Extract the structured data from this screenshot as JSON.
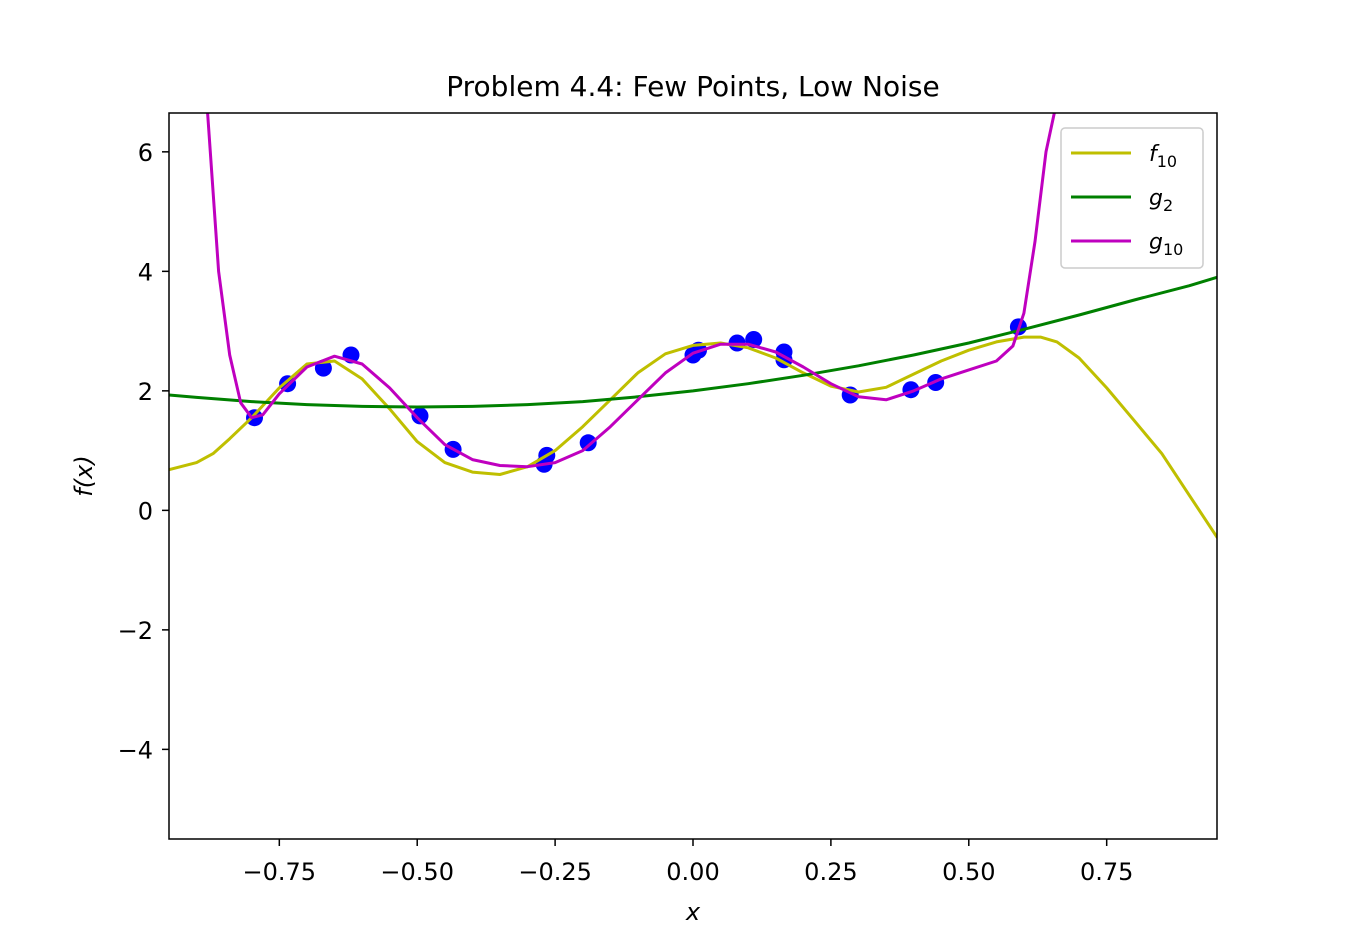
{
  "chart_data": {
    "type": "line",
    "title": "Problem 4.4: Few Points, Low Noise",
    "xlabel": "x",
    "ylabel": "f(x)",
    "xlim": [
      -0.95,
      0.95
    ],
    "ylim": [
      -5.5,
      6.65
    ],
    "x_ticks": [
      -0.75,
      -0.5,
      -0.25,
      0.0,
      0.25,
      0.5,
      0.75
    ],
    "x_tick_labels": [
      "−0.75",
      "−0.50",
      "−0.25",
      "0.00",
      "0.25",
      "0.50",
      "0.75"
    ],
    "y_ticks": [
      -4,
      -2,
      0,
      2,
      4,
      6
    ],
    "y_tick_labels": [
      "−4",
      "−2",
      "0",
      "2",
      "4",
      "6"
    ],
    "grid": false,
    "legend_position": "top-right",
    "series": [
      {
        "name": "f10",
        "legend_base": "f",
        "legend_sub": "10",
        "color": "#bfbf00",
        "x": [
          -0.95,
          -0.9,
          -0.87,
          -0.84,
          -0.8,
          -0.75,
          -0.7,
          -0.65,
          -0.6,
          -0.55,
          -0.5,
          -0.45,
          -0.4,
          -0.35,
          -0.3,
          -0.25,
          -0.2,
          -0.15,
          -0.1,
          -0.05,
          0.0,
          0.05,
          0.1,
          0.15,
          0.2,
          0.25,
          0.3,
          0.35,
          0.4,
          0.45,
          0.5,
          0.55,
          0.6,
          0.63,
          0.66,
          0.7,
          0.75,
          0.8,
          0.85,
          0.9,
          0.95
        ],
        "y": [
          0.68,
          0.8,
          0.95,
          1.2,
          1.55,
          2.05,
          2.45,
          2.5,
          2.2,
          1.7,
          1.15,
          0.8,
          0.64,
          0.6,
          0.73,
          1.0,
          1.4,
          1.85,
          2.3,
          2.62,
          2.76,
          2.8,
          2.72,
          2.55,
          2.3,
          2.08,
          1.98,
          2.06,
          2.28,
          2.5,
          2.68,
          2.82,
          2.9,
          2.9,
          2.82,
          2.55,
          2.05,
          1.5,
          0.95,
          0.25,
          -0.45
        ]
      },
      {
        "name": "g2",
        "legend_base": "g",
        "legend_sub": "2",
        "color": "#008000",
        "x": [
          -0.95,
          -0.9,
          -0.8,
          -0.7,
          -0.6,
          -0.5,
          -0.4,
          -0.3,
          -0.2,
          -0.1,
          0.0,
          0.1,
          0.2,
          0.3,
          0.4,
          0.5,
          0.6,
          0.7,
          0.8,
          0.9,
          0.95
        ],
        "y": [
          1.93,
          1.89,
          1.82,
          1.77,
          1.74,
          1.73,
          1.74,
          1.77,
          1.82,
          1.9,
          2.0,
          2.12,
          2.26,
          2.42,
          2.6,
          2.8,
          3.03,
          3.27,
          3.52,
          3.76,
          3.9
        ]
      },
      {
        "name": "g10",
        "legend_base": "g",
        "legend_sub": "10",
        "color": "#bf00bf",
        "x": [
          -0.88,
          -0.86,
          -0.84,
          -0.82,
          -0.8,
          -0.78,
          -0.75,
          -0.7,
          -0.65,
          -0.6,
          -0.55,
          -0.5,
          -0.45,
          -0.4,
          -0.35,
          -0.3,
          -0.25,
          -0.2,
          -0.15,
          -0.1,
          -0.05,
          0.0,
          0.05,
          0.1,
          0.15,
          0.2,
          0.25,
          0.3,
          0.35,
          0.4,
          0.45,
          0.5,
          0.55,
          0.58,
          0.6,
          0.62,
          0.64,
          0.655
        ],
        "y": [
          6.65,
          4.0,
          2.6,
          1.8,
          1.55,
          1.6,
          1.95,
          2.4,
          2.58,
          2.45,
          2.05,
          1.55,
          1.1,
          0.85,
          0.75,
          0.73,
          0.8,
          1.0,
          1.4,
          1.85,
          2.3,
          2.63,
          2.78,
          2.78,
          2.65,
          2.4,
          2.12,
          1.9,
          1.85,
          2.0,
          2.2,
          2.35,
          2.5,
          2.75,
          3.3,
          4.5,
          6.0,
          6.65
        ]
      }
    ],
    "scatter": {
      "color": "#0000ff",
      "x": [
        -0.795,
        -0.735,
        -0.67,
        -0.62,
        -0.495,
        -0.435,
        -0.27,
        -0.265,
        -0.19,
        0.0,
        0.01,
        0.08,
        0.11,
        0.165,
        0.165,
        0.285,
        0.395,
        0.44,
        0.59
      ],
      "y": [
        1.55,
        2.12,
        2.38,
        2.6,
        1.58,
        1.02,
        0.77,
        0.92,
        1.13,
        2.6,
        2.68,
        2.8,
        2.86,
        2.65,
        2.52,
        1.93,
        2.02,
        2.14,
        3.07
      ]
    }
  }
}
